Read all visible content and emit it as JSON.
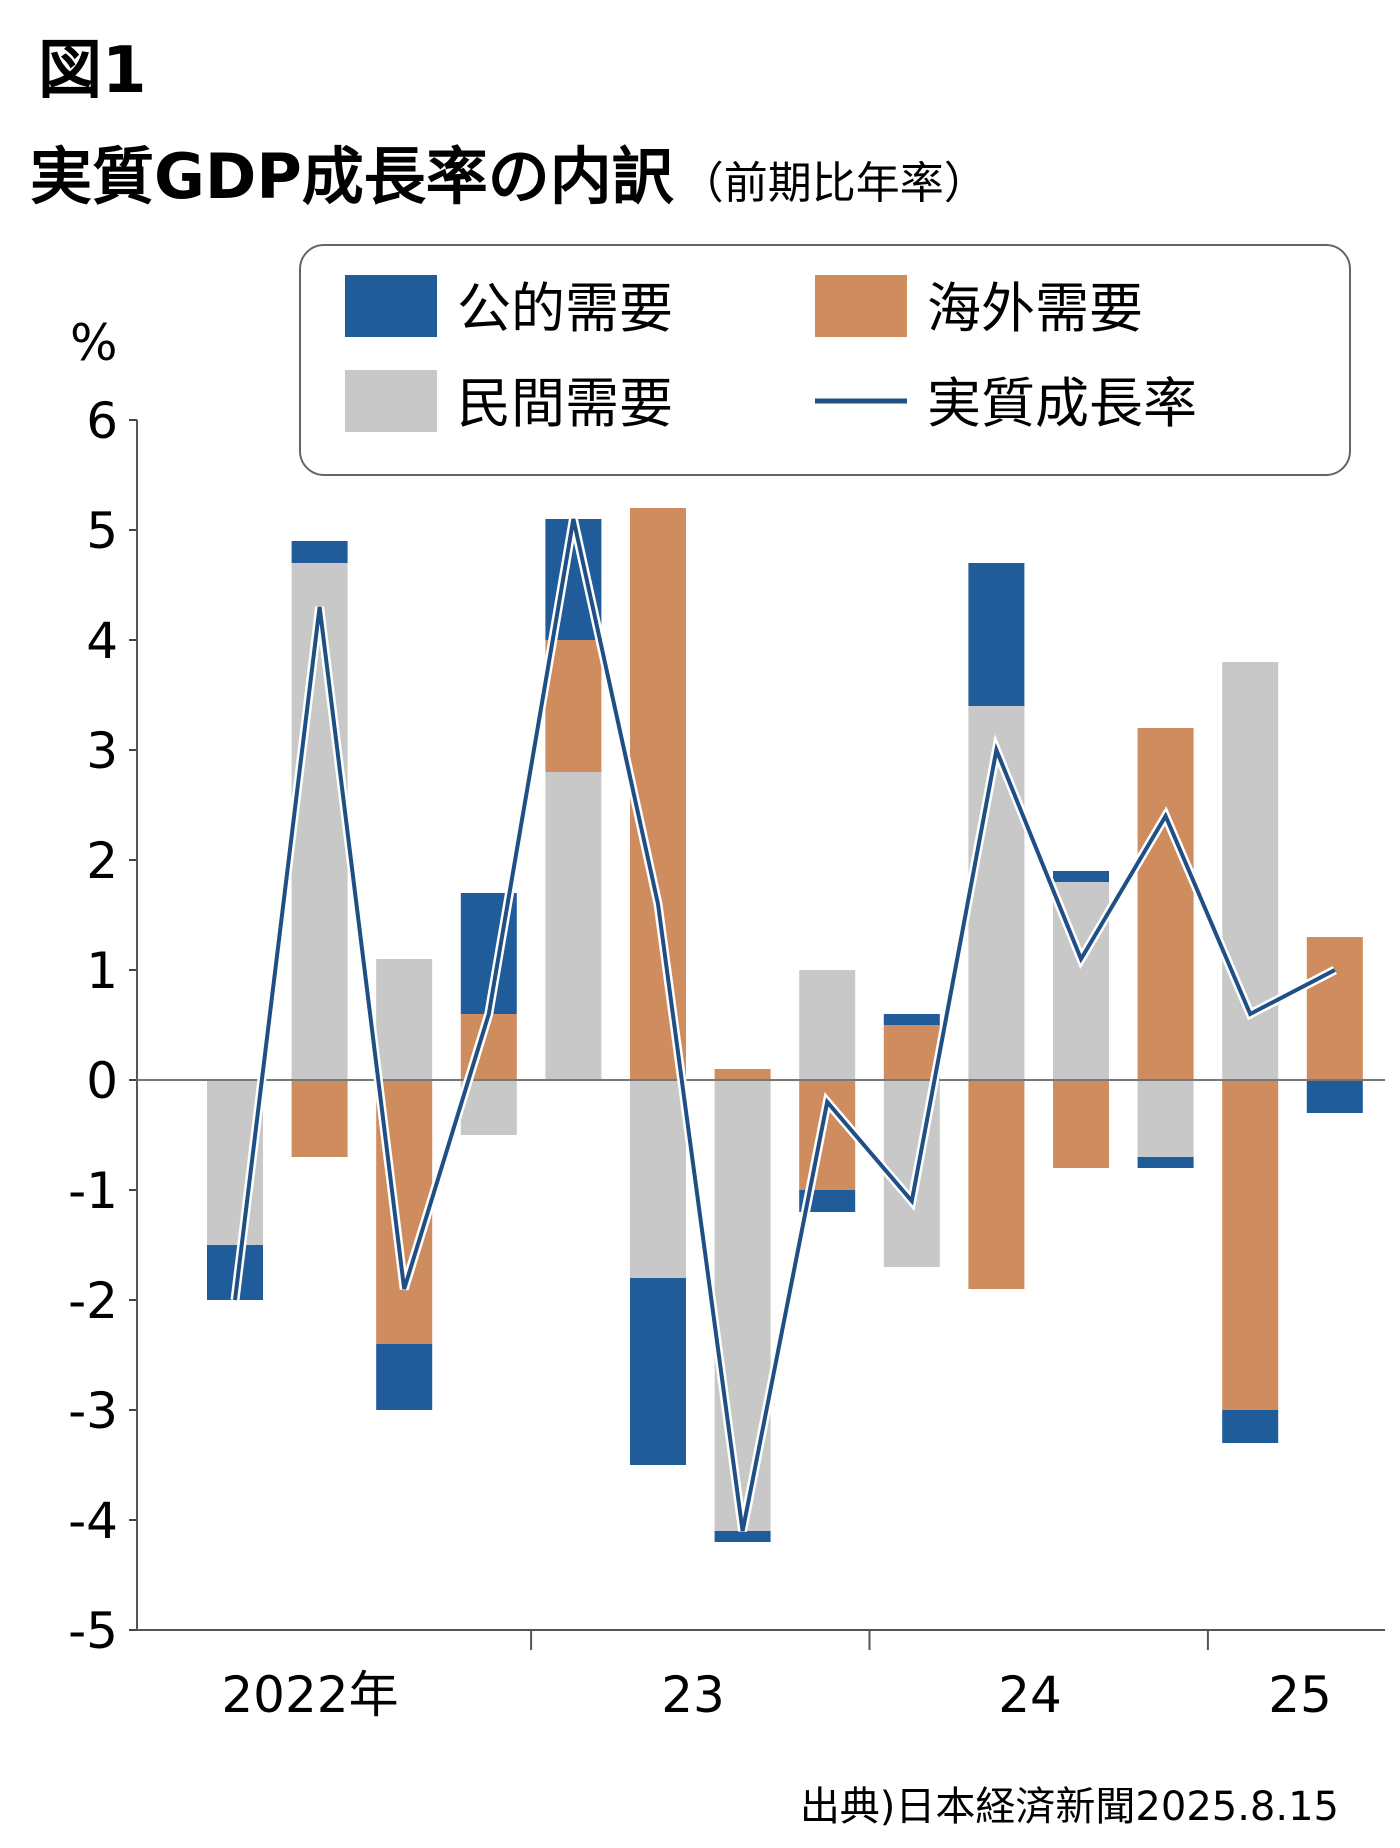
{
  "figure_label": "図1",
  "chart_data": {
    "type": "bar",
    "title": "実質GDP成長率の内訳",
    "subtitle": "（前期比年率）",
    "ylabel": "%",
    "xlabel": "",
    "ylim": [
      -5,
      6
    ],
    "yticks": [
      "6",
      "5",
      "4",
      "3",
      "2",
      "1",
      "0",
      "-1",
      "-2",
      "-3",
      "-4",
      "-5"
    ],
    "x_groups": [
      "2022年",
      "23",
      "24",
      "25"
    ],
    "quarters": [
      "2022Q1",
      "2022Q2",
      "2022Q3",
      "2022Q4",
      "2023Q1",
      "2023Q2",
      "2023Q3",
      "2023Q4",
      "2024Q1",
      "2024Q2",
      "2024Q3",
      "2024Q4",
      "2025Q1",
      "2025Q2"
    ],
    "series": [
      {
        "name": "民間需要",
        "values": [
          -1.5,
          4.7,
          1.1,
          -0.5,
          2.8,
          -1.8,
          -4.1,
          1.0,
          -1.7,
          3.4,
          1.8,
          -0.7,
          3.8,
          0.0
        ]
      },
      {
        "name": "海外需要",
        "values": [
          0.0,
          -0.7,
          -2.4,
          0.6,
          1.2,
          5.2,
          0.1,
          -1.0,
          0.5,
          -1.9,
          -0.8,
          3.2,
          -3.0,
          1.3
        ]
      },
      {
        "name": "公的需要",
        "values": [
          -0.5,
          0.2,
          -0.6,
          1.1,
          1.1,
          -1.7,
          -0.1,
          -0.2,
          0.1,
          1.3,
          0.1,
          -0.1,
          -0.3,
          -0.3
        ]
      }
    ],
    "line": {
      "name": "実質成長率",
      "values": [
        -2.0,
        4.3,
        -1.9,
        0.6,
        5.1,
        1.6,
        -4.1,
        -0.2,
        -1.1,
        3.0,
        1.1,
        2.4,
        0.6,
        1.0
      ]
    },
    "legend": [
      {
        "name": "公的需要",
        "kind": "box"
      },
      {
        "name": "海外需要",
        "kind": "box"
      },
      {
        "name": "民間需要",
        "kind": "box"
      },
      {
        "name": "実質成長率",
        "kind": "line"
      }
    ],
    "legend_position": "top",
    "grid": false,
    "colors": {
      "公的需要": "#1f5c99",
      "海外需要": "#cf8c5e",
      "民間需要": "#c8c8c8",
      "実質成長率": "#1f4f85"
    }
  },
  "source_note": "出典)日本経済新聞2025.8.15"
}
